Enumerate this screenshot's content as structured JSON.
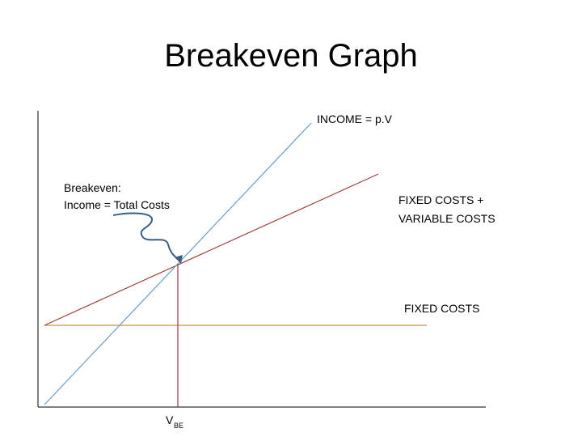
{
  "title": "Breakeven Graph",
  "labels": {
    "income": "INCOME = p.V",
    "breakeven_line1": "Breakeven:",
    "breakeven_line2": "Income = Total Costs",
    "total_costs_line1": "FIXED COSTS +",
    "total_costs_line2": "VARIABLE COSTS",
    "fixed_costs": "FIXED COSTS",
    "vbe_main": "V",
    "vbe_sub": "BE"
  }
}
